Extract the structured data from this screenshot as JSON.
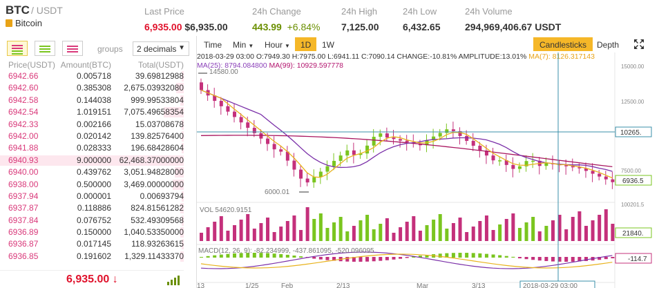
{
  "header": {
    "pair": "BTC",
    "quote": "/ USDT",
    "coin_name": "Bitcoin",
    "stats": [
      {
        "label": "Last Price",
        "value": "6,935.00",
        "value2": "$6,935.00"
      },
      {
        "label": "24h Change",
        "value": "443.99",
        "value2": "+6.84%"
      },
      {
        "label": "24h High",
        "value": "7,125.00"
      },
      {
        "label": "24h Low",
        "value": "6,432.65"
      },
      {
        "label": "24h Volume",
        "value": "294,969,406.67 USDT"
      }
    ]
  },
  "orderbook": {
    "groups_label": "groups",
    "groups_value": "2 decimals",
    "columns": [
      "Price(USDT)",
      "Amount(BTC)",
      "Total(USDT)"
    ],
    "rows": [
      {
        "price": "6942.66",
        "amount": "0.005718",
        "total": "39.69812988",
        "depth": 0.01
      },
      {
        "price": "6942.60",
        "amount": "0.385308",
        "total": "2,675.03932080",
        "depth": 0.04
      },
      {
        "price": "6942.58",
        "amount": "0.144038",
        "total": "999.99533804",
        "depth": 0.02
      },
      {
        "price": "6942.54",
        "amount": "1.019151",
        "total": "7,075.49658354",
        "depth": 0.11
      },
      {
        "price": "6942.33",
        "amount": "0.002166",
        "total": "15.03708678",
        "depth": 0.01
      },
      {
        "price": "6942.00",
        "amount": "0.020142",
        "total": "139.82576400",
        "depth": 0.01
      },
      {
        "price": "6941.88",
        "amount": "0.028333",
        "total": "196.68428604",
        "depth": 0.01
      },
      {
        "price": "6940.93",
        "amount": "9.000000",
        "total": "62,468.37000000",
        "depth": 1.0
      },
      {
        "price": "6940.00",
        "amount": "0.439762",
        "total": "3,051.94828000",
        "depth": 0.05
      },
      {
        "price": "6938.00",
        "amount": "0.500000",
        "total": "3,469.00000000",
        "depth": 0.06
      },
      {
        "price": "6937.94",
        "amount": "0.000001",
        "total": "0.00693794",
        "depth": 0.01
      },
      {
        "price": "6937.87",
        "amount": "0.118886",
        "total": "824.81561282",
        "depth": 0.02
      },
      {
        "price": "6937.84",
        "amount": "0.076752",
        "total": "532.49309568",
        "depth": 0.01
      },
      {
        "price": "6936.89",
        "amount": "0.150000",
        "total": "1,040.53350000",
        "depth": 0.02
      },
      {
        "price": "6936.87",
        "amount": "0.017145",
        "total": "118.93263615",
        "depth": 0.01
      },
      {
        "price": "6936.85",
        "amount": "0.191602",
        "total": "1,329.11433370",
        "depth": 0.02
      }
    ],
    "last_price": "6,935.00 ↓"
  },
  "chart": {
    "toolbar": {
      "time": "Time",
      "min": "Min",
      "hour": "Hour",
      "d1": "1D",
      "w1": "1W",
      "candlesticks": "Candlesticks",
      "depth": "Depth"
    },
    "info_line1": "2018-03-29 03:00   O:7949.30 H:7975.00 L:6941.11 C:7090.14 CHANGE:-10.81% AMPLITUDE:13.01%",
    "ma7": "MA(7): 8126.317143",
    "ma25": "MA(25): 8794.084800",
    "ma99": "MA(99): 10929.597778",
    "vol_label": "VOL 54620.9151",
    "macd_label": "MACD(12, 26, 9): -82.234999, -437.861095, -520.096095",
    "axis_labels": [
      "15000.00",
      "12500.00",
      "10265.",
      "7500.00",
      "6936.5",
      "100201.5",
      "21840.",
      "-114.7"
    ],
    "annot_high": "14580.00",
    "annot_low": "6000.01",
    "x_labels": [
      "13",
      "1/25",
      "Feb",
      "2/13",
      "Mar",
      "3/13",
      "2018-03-29 03:00"
    ]
  },
  "colors": {
    "up": "#7ac51f",
    "down": "#c4307b",
    "ma7": "#e8b21b",
    "ma25": "#7a2fa8",
    "ma99": "#a8145e",
    "accent": "#f5b728"
  }
}
